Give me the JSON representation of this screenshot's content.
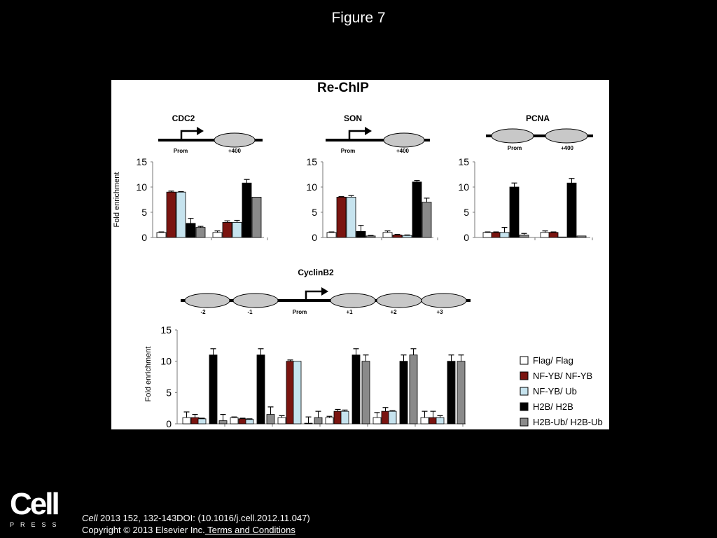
{
  "slide": {
    "title": "Figure 7",
    "logo_text": "Cell",
    "logo_subtext": "PRESS",
    "citation_journal": "Cell",
    "citation_rest": " 2013 152, 132-143DOI: (10.1016/j.cell.2012.11.047)",
    "copyright": "Copyright © 2013 Elsevier Inc.",
    "terms_link": " Terms and Conditions"
  },
  "figure": {
    "title": "Re-ChIP",
    "ylabel": "Fold enrichment",
    "yticks": [
      0,
      5,
      10,
      15
    ],
    "legend": [
      {
        "label": "Flag/ Flag",
        "color": "#ffffff"
      },
      {
        "label": "NF-YB/ NF-YB",
        "color": "#7a1410"
      },
      {
        "label": "NF-YB/ Ub",
        "color": "#c6e3ee"
      },
      {
        "label": "H2B/ H2B",
        "color": "#000000"
      },
      {
        "label": "H2B-Ub/ H2B-Ub",
        "color": "#8a8a8a"
      }
    ],
    "loci": {
      "cdc2": {
        "name": "CDC2",
        "labels": [
          "Prom",
          "+400"
        ]
      },
      "son": {
        "name": "SON",
        "labels": [
          "Prom",
          "+400"
        ]
      },
      "pcna": {
        "name": "PCNA",
        "labels": [
          "Prom",
          "+400"
        ]
      },
      "cyclinb2": {
        "name": "CyclinB2",
        "labels": [
          "-2",
          "-1",
          "Prom",
          "+1",
          "+2",
          "+3"
        ]
      }
    }
  },
  "chart_data": [
    {
      "type": "bar",
      "title": "CDC2",
      "ylabel": "Fold enrichment",
      "ylim": [
        0,
        15
      ],
      "categories": [
        "Prom",
        "+400"
      ],
      "series": [
        {
          "name": "Flag/ Flag",
          "values": [
            1.0,
            1.0
          ],
          "errors": [
            0.1,
            0.3
          ]
        },
        {
          "name": "NF-YB/ NF-YB",
          "values": [
            9.0,
            3.0
          ],
          "errors": [
            0.2,
            0.3
          ]
        },
        {
          "name": "NF-YB/ Ub",
          "values": [
            9.0,
            3.0
          ],
          "errors": [
            0.1,
            0.4
          ]
        },
        {
          "name": "H2B/ H2B",
          "values": [
            2.8,
            10.8
          ],
          "errors": [
            1.0,
            0.7
          ]
        },
        {
          "name": "H2B-Ub/ H2B-Ub",
          "values": [
            2.0,
            8.0
          ],
          "errors": [
            0.2,
            0.0
          ]
        }
      ]
    },
    {
      "type": "bar",
      "title": "SON",
      "ylim": [
        0,
        15
      ],
      "categories": [
        "Prom",
        "+400"
      ],
      "series": [
        {
          "name": "Flag/ Flag",
          "values": [
            1.0,
            1.0
          ],
          "errors": [
            0.1,
            0.3
          ]
        },
        {
          "name": "NF-YB/ NF-YB",
          "values": [
            8.0,
            0.5
          ],
          "errors": [
            0.1,
            0.1
          ]
        },
        {
          "name": "NF-YB/ Ub",
          "values": [
            8.0,
            0.4
          ],
          "errors": [
            0.3,
            0.1
          ]
        },
        {
          "name": "H2B/ H2B",
          "values": [
            1.2,
            11.0
          ],
          "errors": [
            1.2,
            0.3
          ]
        },
        {
          "name": "H2B-Ub/ H2B-Ub",
          "values": [
            0.3,
            7.0
          ],
          "errors": [
            0.1,
            0.8
          ]
        }
      ]
    },
    {
      "type": "bar",
      "title": "PCNA",
      "ylim": [
        0,
        15
      ],
      "categories": [
        "Prom",
        "+400"
      ],
      "series": [
        {
          "name": "Flag/ Flag",
          "values": [
            1.0,
            1.0
          ],
          "errors": [
            0.1,
            0.3
          ]
        },
        {
          "name": "NF-YB/ NF-YB",
          "values": [
            1.0,
            1.0
          ],
          "errors": [
            0.1,
            0.1
          ]
        },
        {
          "name": "NF-YB/ Ub",
          "values": [
            1.0,
            0.1
          ],
          "errors": [
            1.0,
            0.0
          ]
        },
        {
          "name": "H2B/ H2B",
          "values": [
            10.0,
            10.8
          ],
          "errors": [
            0.8,
            0.9
          ]
        },
        {
          "name": "H2B-Ub/ H2B-Ub",
          "values": [
            0.5,
            0.3
          ],
          "errors": [
            0.3,
            0.0
          ]
        }
      ]
    },
    {
      "type": "bar",
      "title": "CyclinB2",
      "ylabel": "Fold enrichment",
      "ylim": [
        0,
        15
      ],
      "categories": [
        "-2",
        "-1",
        "Prom",
        "+1",
        "+2",
        "+3"
      ],
      "series": [
        {
          "name": "Flag/ Flag",
          "values": [
            1.0,
            1.0,
            1.0,
            1.0,
            1.0,
            1.0
          ],
          "errors": [
            0.9,
            0.1,
            0.3,
            0.2,
            0.8,
            1.0
          ]
        },
        {
          "name": "NF-YB/ NF-YB",
          "values": [
            1.0,
            0.8,
            10.0,
            2.0,
            2.0,
            1.0
          ],
          "errors": [
            0.5,
            0.1,
            0.2,
            0.3,
            0.6,
            1.0
          ]
        },
        {
          "name": "NF-YB/ Ub",
          "values": [
            0.8,
            0.7,
            10.0,
            2.0,
            2.0,
            1.0
          ],
          "errors": [
            0.1,
            0.1,
            0.0,
            0.2,
            0.1,
            0.3
          ]
        },
        {
          "name": "H2B/ H2B",
          "values": [
            11.0,
            11.0,
            0.1,
            11.0,
            10.0,
            10.0
          ],
          "errors": [
            1.0,
            1.0,
            1.0,
            1.0,
            1.0,
            1.0
          ]
        },
        {
          "name": "H2B-Ub/ H2B-Ub",
          "values": [
            0.5,
            1.5,
            1.0,
            10.0,
            11.0,
            10.0
          ],
          "errors": [
            1.0,
            1.2,
            1.0,
            1.0,
            1.0,
            1.0
          ]
        }
      ]
    }
  ]
}
